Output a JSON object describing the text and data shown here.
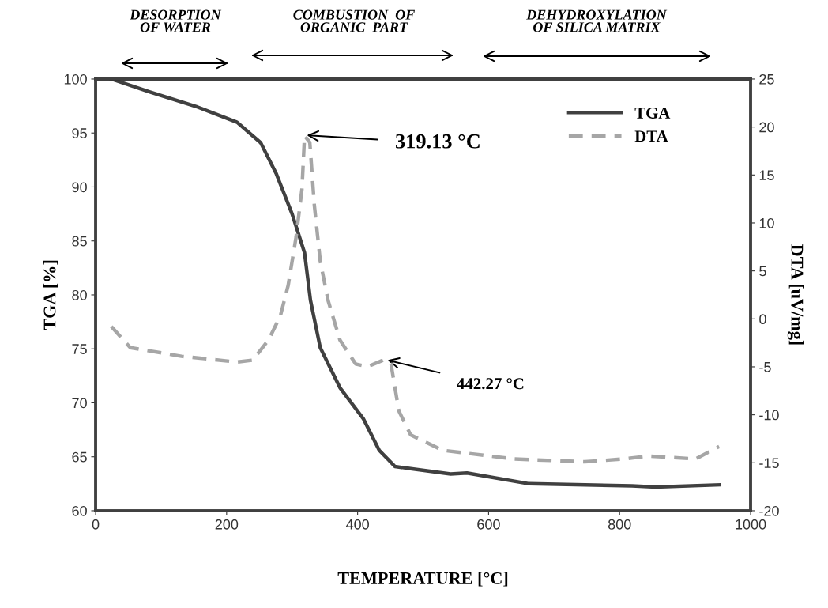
{
  "chart_data": {
    "type": "line",
    "xlabel": "TEMPERATURE [°C]",
    "ylabel": "TGA [%]",
    "y2label": "DTA [uV/mg]",
    "xlim": [
      0,
      1000
    ],
    "xticks": [
      0,
      200,
      400,
      600,
      800,
      1000
    ],
    "ylim": [
      60,
      100
    ],
    "yticks": [
      60,
      65,
      70,
      75,
      80,
      85,
      90,
      95,
      100
    ],
    "y2lim": [
      -20,
      25
    ],
    "y2ticks": [
      -20,
      -15,
      -10,
      -5,
      0,
      5,
      10,
      15,
      20,
      25
    ],
    "grid": false,
    "legend": "top right",
    "marker": "none",
    "series": [
      {
        "name": "TGA",
        "color": "#404040",
        "line_style": "solid",
        "x": [
          24,
          83,
          156,
          216,
          252,
          276,
          300,
          319,
          328,
          343,
          373,
          409,
          433,
          457,
          481,
          542,
          567,
          662,
          819,
          855,
          952
        ],
        "values": [
          100,
          98.8,
          97.4,
          96.0,
          94.1,
          91.2,
          87.5,
          83.9,
          79.5,
          75.1,
          71.4,
          68.5,
          65.6,
          64.1,
          63.9,
          63.4,
          63.5,
          62.5,
          62.3,
          62.2,
          62.4
        ]
      },
      {
        "name": "DTA",
        "color": "#a6a6a6",
        "line_style": "dashed",
        "axis": "y2",
        "x": [
          24,
          53,
          131,
          216,
          240,
          264,
          282,
          294,
          306,
          315,
          319,
          327,
          334,
          343,
          355,
          373,
          397,
          415,
          439,
          451,
          463,
          481,
          530,
          638,
          747,
          807,
          843,
          916,
          952
        ],
        "values": [
          -0.8,
          -3.0,
          -3.9,
          -4.5,
          -4.3,
          -2.2,
          0.3,
          3.5,
          8.5,
          13.5,
          19.1,
          18.4,
          11.8,
          6.0,
          1.9,
          -2.2,
          -4.7,
          -5.0,
          -4.3,
          -4.7,
          -9.6,
          -12.1,
          -13.7,
          -14.6,
          -14.9,
          -14.6,
          -14.3,
          -14.6,
          -13.3
        ]
      }
    ],
    "annotations": [
      "DESORPTION\nOF WATER",
      "COMBUSTION  OF\nORGANIC  PART",
      "DEHYDROXYLATION\nOF SILICA MATRIX",
      {
        "text": "319.13 °C",
        "x": 319.13,
        "y": 94.8
      },
      {
        "text": "442.27 °C",
        "x": 442.27,
        "y": 74.0
      }
    ]
  }
}
